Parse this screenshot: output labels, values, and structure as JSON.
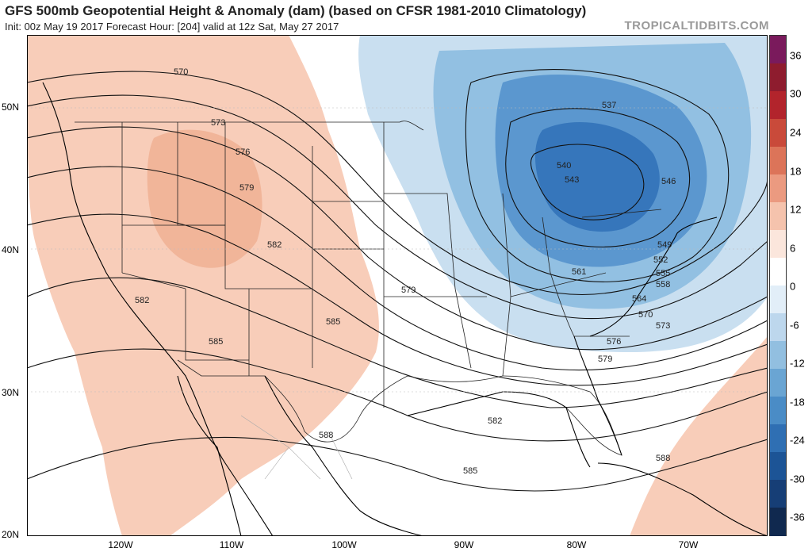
{
  "header": {
    "title": "GFS 500mb Geopotential Height & Anomaly (dam) (based on CFSR 1981-2010 Climatology)",
    "subtitle": "Init: 00z May 19 2017   Forecast Hour: [204]   valid at 12z Sat, May 27 2017",
    "site": "TROPICALTIDBITS.COM"
  },
  "map": {
    "lat_labels": [
      "50N",
      "40N",
      "30N",
      "20N"
    ],
    "lon_labels": [
      "120W",
      "110W",
      "100W",
      "90W",
      "80W",
      "70W"
    ],
    "contour_labels": [
      "570",
      "573",
      "576",
      "579",
      "582",
      "582",
      "585",
      "585",
      "588",
      "579",
      "582",
      "585",
      "588",
      "537",
      "540",
      "543",
      "546",
      "549",
      "552",
      "555",
      "558",
      "561",
      "564",
      "570",
      "573",
      "576",
      "579"
    ],
    "colors": {
      "ridge": "#f6c4ad",
      "ridge_core": "#eda788",
      "trough_light": "#c5dcee",
      "trough_mid": "#8cbde0",
      "trough_core": "#4f8fcc",
      "trough_deep": "#3070b8",
      "contour": "#111111",
      "border": "#222222"
    }
  },
  "colorbar": {
    "labels": [
      "36",
      "30",
      "24",
      "18",
      "12",
      "6",
      "0",
      "-6",
      "-12",
      "-18",
      "-24",
      "-30",
      "-36"
    ],
    "colors": [
      "#7a1a5c",
      "#8e1c2e",
      "#b2242c",
      "#c94a3a",
      "#dc7459",
      "#eb9a80",
      "#f5c3ad",
      "#fbe6dc",
      "#ffffff",
      "#e2eef8",
      "#bdd7ed",
      "#92bfe0",
      "#6aa5d3",
      "#4a8cc6",
      "#2f6fb3",
      "#1c5496",
      "#163e76",
      "#10294f"
    ]
  }
}
